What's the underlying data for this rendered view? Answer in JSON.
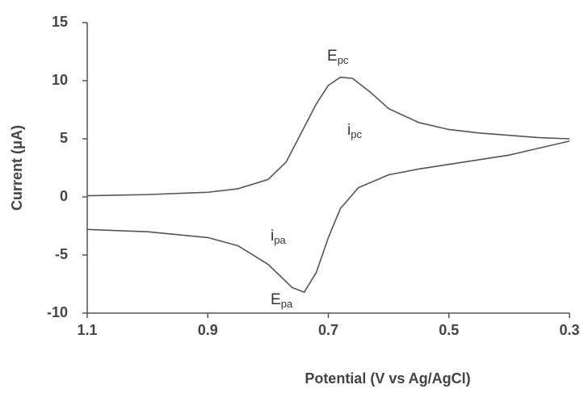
{
  "chart_data": {
    "type": "line",
    "xlabel": "Potential (V vs Ag/AgCl)",
    "ylabel": "Current (μA)",
    "xlim": [
      1.1,
      0.3
    ],
    "xticks": [
      1.1,
      0.9,
      0.7,
      0.5,
      0.3
    ],
    "ylim": [
      -10,
      15
    ],
    "yticks": [
      -10,
      -5,
      0,
      5,
      10,
      15
    ],
    "series": [
      {
        "color": "#555555",
        "x": [
          1.1,
          1.0,
          0.9,
          0.85,
          0.8,
          0.77,
          0.75,
          0.72,
          0.7,
          0.68,
          0.66,
          0.63,
          0.6,
          0.55,
          0.5,
          0.45,
          0.4,
          0.35,
          0.3
        ],
        "values": [
          0.1,
          0.2,
          0.4,
          0.7,
          1.5,
          3,
          5,
          8,
          9.6,
          10.3,
          10.2,
          9,
          7.6,
          6.4,
          5.8,
          5.5,
          5.3,
          5.1,
          5.0
        ]
      },
      {
        "color": "#555555",
        "x": [
          0.3,
          0.35,
          0.4,
          0.45,
          0.5,
          0.55,
          0.6,
          0.65,
          0.68,
          0.7,
          0.72,
          0.74,
          0.76,
          0.8,
          0.85,
          0.9,
          1.0,
          1.1
        ],
        "values": [
          4.8,
          4.2,
          3.6,
          3.2,
          2.8,
          2.4,
          1.9,
          0.8,
          -1,
          -3.5,
          -6.5,
          -8.2,
          -7.8,
          -5.8,
          -4.2,
          -3.5,
          -3.0,
          -2.8
        ]
      }
    ],
    "annotations": [
      {
        "text": "E",
        "sub": "pc"
      },
      {
        "text": "i",
        "sub": "pc"
      },
      {
        "text": "i",
        "sub": "pa"
      },
      {
        "text": "E",
        "sub": "pa"
      }
    ]
  }
}
